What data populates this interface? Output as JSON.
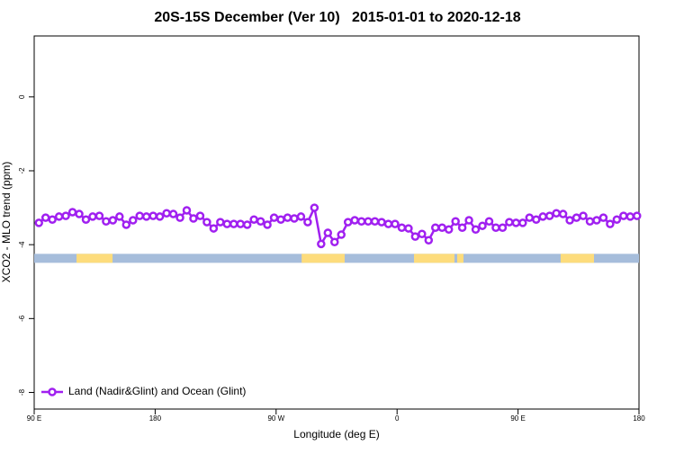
{
  "chart_data": {
    "type": "line",
    "title": "20S-15S December (Ver 10)   2015-01-01 to 2020-12-18",
    "xlabel": "Longitude (deg E)",
    "ylabel": "XCO2 - MLO trend (ppm)",
    "xlim": [
      90,
      540
    ],
    "ylim": [
      -8.45,
      1.65
    ],
    "xticks": [
      {
        "value": 90,
        "label": "90 E"
      },
      {
        "value": 180,
        "label": "180"
      },
      {
        "value": 270,
        "label": "90 W"
      },
      {
        "value": 360,
        "label": "0"
      },
      {
        "value": 450,
        "label": "90 E"
      },
      {
        "value": 540,
        "label": "180"
      }
    ],
    "yticks": [
      -8,
      -6,
      -4,
      -2,
      0
    ],
    "legend": "bottom-left",
    "x": [
      93.5,
      98.5,
      103.5,
      108.5,
      113.5,
      118.5,
      123.5,
      128.5,
      133.5,
      138.5,
      143.5,
      148.5,
      153.5,
      158.5,
      163.5,
      168.5,
      173.5,
      178.5,
      183.5,
      188.5,
      193.5,
      198.5,
      203.5,
      208.5,
      213.5,
      218.5,
      223.5,
      228.5,
      233.5,
      238.5,
      243.5,
      248.5,
      253.5,
      258.5,
      263.5,
      268.5,
      273.5,
      278.5,
      283.5,
      288.5,
      293.5,
      298.5,
      303.5,
      308.5,
      313.5,
      318.5,
      323.5,
      328.5,
      333.5,
      338.5,
      343.5,
      348.5,
      353.5,
      358.5,
      363.5,
      368.5,
      373.5,
      378.5,
      383.5,
      388.5,
      393.5,
      398.5,
      403.5,
      408.5,
      413.5,
      418.5,
      423.5,
      428.5,
      433.5,
      438.5,
      443.5,
      448.5,
      453.5,
      458.5,
      463.5,
      468.5,
      473.5,
      478.5,
      483.5,
      488.5,
      493.5,
      498.5,
      503.5,
      508.5,
      513.5,
      518.5,
      523.5,
      528.5,
      533.5,
      538.5
    ],
    "series": [
      {
        "name": "Land (Nadir&Glint) and Ocean (Glint)",
        "color": "#a020f0",
        "values": [
          -3.41,
          -3.27,
          -3.32,
          -3.24,
          -3.22,
          -3.12,
          -3.17,
          -3.32,
          -3.24,
          -3.22,
          -3.37,
          -3.34,
          -3.24,
          -3.46,
          -3.34,
          -3.22,
          -3.24,
          -3.22,
          -3.24,
          -3.15,
          -3.17,
          -3.27,
          -3.07,
          -3.29,
          -3.22,
          -3.39,
          -3.56,
          -3.39,
          -3.44,
          -3.44,
          -3.44,
          -3.46,
          -3.32,
          -3.37,
          -3.46,
          -3.27,
          -3.32,
          -3.27,
          -3.29,
          -3.24,
          -3.39,
          -3.0,
          -3.98,
          -3.68,
          -3.93,
          -3.73,
          -3.39,
          -3.34,
          -3.37,
          -3.37,
          -3.37,
          -3.39,
          -3.44,
          -3.44,
          -3.54,
          -3.56,
          -3.78,
          -3.71,
          -3.88,
          -3.54,
          -3.54,
          -3.59,
          -3.37,
          -3.54,
          -3.34,
          -3.59,
          -3.49,
          -3.37,
          -3.54,
          -3.54,
          -3.39,
          -3.41,
          -3.41,
          -3.27,
          -3.32,
          -3.24,
          -3.22,
          -3.15,
          -3.17,
          -3.34,
          -3.27,
          -3.22,
          -3.37,
          -3.34,
          -3.27,
          -3.44,
          -3.32,
          -3.22,
          -3.24,
          -3.22
        ]
      }
    ],
    "strip_level": -4.37,
    "ocean_color": "#a6bddb",
    "land_color": "#fddc7c",
    "land_ranges": [
      [
        121.5,
        148.3
      ],
      [
        289,
        321
      ],
      [
        372.6,
        402.7
      ],
      [
        404.7,
        409.4
      ],
      [
        481.7,
        506.5
      ]
    ]
  }
}
